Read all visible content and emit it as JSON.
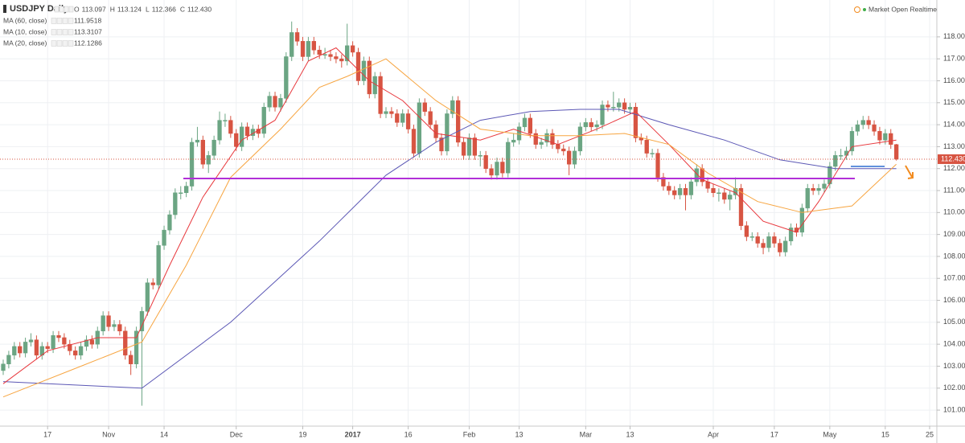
{
  "chart_data": {
    "type": "candlestick",
    "title": "USDJPY Daily",
    "ohlc_labels": [
      {
        "key": "O",
        "value": "113.097"
      },
      {
        "key": "H",
        "value": "113.124"
      },
      {
        "key": "L",
        "value": "112.366"
      },
      {
        "key": "C",
        "value": "112.430"
      }
    ],
    "status": "Market Open Realtime",
    "last_price_label": "112.430",
    "up_color": "#6ba583",
    "down_color": "#d75442",
    "grid": true,
    "xlim": [
      -0.58,
      168.3
    ],
    "ylim": [
      100.27,
      119.68
    ],
    "xticks": [
      {
        "value": 8,
        "label": "17"
      },
      {
        "value": 19,
        "label": "Nov"
      },
      {
        "value": 29,
        "label": "14"
      },
      {
        "value": 42,
        "label": "Dec"
      },
      {
        "value": 54,
        "label": "19"
      },
      {
        "value": 63,
        "label": "2017"
      },
      {
        "value": 73,
        "label": "16"
      },
      {
        "value": 84,
        "label": "Feb"
      },
      {
        "value": 93,
        "label": "13"
      },
      {
        "value": 105,
        "label": "Mar"
      },
      {
        "value": 113,
        "label": "13"
      },
      {
        "value": 128,
        "label": "Apr"
      },
      {
        "value": 139,
        "label": "17"
      },
      {
        "value": 149,
        "label": "May"
      },
      {
        "value": 159,
        "label": "15"
      },
      {
        "value": 167,
        "label": "25"
      }
    ],
    "yticks": [
      {
        "value": 101,
        "label": "101.000"
      },
      {
        "value": 102,
        "label": "102.000"
      },
      {
        "value": 103,
        "label": "103.000"
      },
      {
        "value": 104,
        "label": "104.000"
      },
      {
        "value": 105,
        "label": "105.000"
      },
      {
        "value": 106,
        "label": "106.000"
      },
      {
        "value": 107,
        "label": "107.000"
      },
      {
        "value": 108,
        "label": "108.000"
      },
      {
        "value": 109,
        "label": "109.000"
      },
      {
        "value": 110,
        "label": "110.000"
      },
      {
        "value": 111,
        "label": "111.000"
      },
      {
        "value": 112,
        "label": "112.000"
      },
      {
        "value": 113,
        "label": "113.000"
      },
      {
        "value": 114,
        "label": "114.000"
      },
      {
        "value": 115,
        "label": "115.000"
      },
      {
        "value": 116,
        "label": "116.000"
      },
      {
        "value": 117,
        "label": "117.000"
      },
      {
        "value": 118,
        "label": "118.000"
      }
    ],
    "candles": [
      [
        102.8,
        103.3,
        102.6,
        103.1
      ],
      [
        103.1,
        103.7,
        102.9,
        103.5
      ],
      [
        103.5,
        104.1,
        103.3,
        103.9
      ],
      [
        103.9,
        104.1,
        103.4,
        103.6
      ],
      [
        103.6,
        104.3,
        103.4,
        104.1
      ],
      [
        104.1,
        104.5,
        103.9,
        104.2
      ],
      [
        104.2,
        104.4,
        103.3,
        103.5
      ],
      [
        103.5,
        104.1,
        103.3,
        103.9
      ],
      [
        103.9,
        104.1,
        103.6,
        103.8
      ],
      [
        103.8,
        104.6,
        103.6,
        104.4
      ],
      [
        104.4,
        104.6,
        104.1,
        104.3
      ],
      [
        104.3,
        104.5,
        103.8,
        104.0
      ],
      [
        104.0,
        104.2,
        103.5,
        103.7
      ],
      [
        103.7,
        103.9,
        103.3,
        103.5
      ],
      [
        103.5,
        104.1,
        103.3,
        103.9
      ],
      [
        103.9,
        104.4,
        103.7,
        104.2
      ],
      [
        104.2,
        104.4,
        103.8,
        104.0
      ],
      [
        104.0,
        104.8,
        103.8,
        104.6
      ],
      [
        104.6,
        105.5,
        104.4,
        105.3
      ],
      [
        105.3,
        105.5,
        104.6,
        104.8
      ],
      [
        104.8,
        105.1,
        104.6,
        104.9
      ],
      [
        104.9,
        105.1,
        104.4,
        104.6
      ],
      [
        104.6,
        104.8,
        103.3,
        103.5
      ],
      [
        103.5,
        103.7,
        102.6,
        103.1
      ],
      [
        103.1,
        104.8,
        102.9,
        104.6
      ],
      [
        104.6,
        105.7,
        101.2,
        105.5
      ],
      [
        105.5,
        107.0,
        105.3,
        106.8
      ],
      [
        106.8,
        107.0,
        106.5,
        106.7
      ],
      [
        106.7,
        108.7,
        106.5,
        108.5
      ],
      [
        108.5,
        109.4,
        108.3,
        109.2
      ],
      [
        109.2,
        110.1,
        109.0,
        109.9
      ],
      [
        109.9,
        111.1,
        109.7,
        110.9
      ],
      [
        110.9,
        111.2,
        110.6,
        110.9
      ],
      [
        110.9,
        111.4,
        110.7,
        111.2
      ],
      [
        111.2,
        113.4,
        111.0,
        113.2
      ],
      [
        113.2,
        113.9,
        113.0,
        113.3
      ],
      [
        113.3,
        113.5,
        112.0,
        112.2
      ],
      [
        112.2,
        112.8,
        111.8,
        112.6
      ],
      [
        112.6,
        113.5,
        112.4,
        113.3
      ],
      [
        113.3,
        114.6,
        113.1,
        114.2
      ],
      [
        114.2,
        114.5,
        113.9,
        114.2
      ],
      [
        114.2,
        114.4,
        113.4,
        113.6
      ],
      [
        113.6,
        113.8,
        112.8,
        113.0
      ],
      [
        113.0,
        114.1,
        112.8,
        113.9
      ],
      [
        113.9,
        114.1,
        113.3,
        113.5
      ],
      [
        113.5,
        114.0,
        113.3,
        113.8
      ],
      [
        113.8,
        114.0,
        113.4,
        113.6
      ],
      [
        113.6,
        115.0,
        113.4,
        114.8
      ],
      [
        114.8,
        115.5,
        114.6,
        115.3
      ],
      [
        115.3,
        115.5,
        114.6,
        114.8
      ],
      [
        114.8,
        115.4,
        114.6,
        115.2
      ],
      [
        115.2,
        117.3,
        115.0,
        117.1
      ],
      [
        117.1,
        118.7,
        116.9,
        118.2
      ],
      [
        118.2,
        118.4,
        117.6,
        117.8
      ],
      [
        117.8,
        118.0,
        116.9,
        117.1
      ],
      [
        117.1,
        118.0,
        116.9,
        117.8
      ],
      [
        117.8,
        118.0,
        117.2,
        117.4
      ],
      [
        117.4,
        117.6,
        117.0,
        117.2
      ],
      [
        117.2,
        117.5,
        117.0,
        117.2
      ],
      [
        117.2,
        117.4,
        116.9,
        117.1
      ],
      [
        117.1,
        117.3,
        116.8,
        117.0
      ],
      [
        117.0,
        117.2,
        116.6,
        116.9
      ],
      [
        116.9,
        118.6,
        116.7,
        117.6
      ],
      [
        117.6,
        117.8,
        117.1,
        117.3
      ],
      [
        117.3,
        117.5,
        115.8,
        116.0
      ],
      [
        116.0,
        117.1,
        115.8,
        116.9
      ],
      [
        116.9,
        117.1,
        115.2,
        115.4
      ],
      [
        115.4,
        116.4,
        115.2,
        116.2
      ],
      [
        116.2,
        116.4,
        114.3,
        114.5
      ],
      [
        114.5,
        114.8,
        114.3,
        114.6
      ],
      [
        114.6,
        114.8,
        114.3,
        114.5
      ],
      [
        114.5,
        114.7,
        113.9,
        114.1
      ],
      [
        114.1,
        114.7,
        113.9,
        114.5
      ],
      [
        114.5,
        114.7,
        113.6,
        113.8
      ],
      [
        113.8,
        114.0,
        112.5,
        112.7
      ],
      [
        112.7,
        115.2,
        112.5,
        115.0
      ],
      [
        115.0,
        115.2,
        114.4,
        114.6
      ],
      [
        114.6,
        114.8,
        113.8,
        114.0
      ],
      [
        114.0,
        114.2,
        113.2,
        113.4
      ],
      [
        113.4,
        113.6,
        112.6,
        112.8
      ],
      [
        112.8,
        114.7,
        112.6,
        114.5
      ],
      [
        114.5,
        115.3,
        114.3,
        115.1
      ],
      [
        115.1,
        115.3,
        113.0,
        113.2
      ],
      [
        113.2,
        113.4,
        112.4,
        112.6
      ],
      [
        112.6,
        113.6,
        112.4,
        113.4
      ],
      [
        113.4,
        113.6,
        112.4,
        112.6
      ],
      [
        112.6,
        112.8,
        112.1,
        112.6
      ],
      [
        112.6,
        112.8,
        111.8,
        112.0
      ],
      [
        112.0,
        112.2,
        111.5,
        111.7
      ],
      [
        111.7,
        112.5,
        111.5,
        112.3
      ],
      [
        112.3,
        112.5,
        111.6,
        111.8
      ],
      [
        111.8,
        113.4,
        111.6,
        113.2
      ],
      [
        113.2,
        113.6,
        113.0,
        113.3
      ],
      [
        113.3,
        114.1,
        113.1,
        113.9
      ],
      [
        113.9,
        114.5,
        113.7,
        114.3
      ],
      [
        114.3,
        114.5,
        113.4,
        113.6
      ],
      [
        113.6,
        113.8,
        112.9,
        113.1
      ],
      [
        113.1,
        113.4,
        112.9,
        113.2
      ],
      [
        113.2,
        113.8,
        113.0,
        113.6
      ],
      [
        113.6,
        113.8,
        112.9,
        113.1
      ],
      [
        113.1,
        113.3,
        112.7,
        112.9
      ],
      [
        112.9,
        113.1,
        112.6,
        112.8
      ],
      [
        112.8,
        113.0,
        111.7,
        112.2
      ],
      [
        112.2,
        113.0,
        112.0,
        112.8
      ],
      [
        112.8,
        114.1,
        112.6,
        113.9
      ],
      [
        113.9,
        114.3,
        113.7,
        114.1
      ],
      [
        114.1,
        114.3,
        113.7,
        113.9
      ],
      [
        113.9,
        114.2,
        113.7,
        114.0
      ],
      [
        114.0,
        115.1,
        113.8,
        114.9
      ],
      [
        114.9,
        115.1,
        114.6,
        114.8
      ],
      [
        114.8,
        115.5,
        114.6,
        114.8
      ],
      [
        114.8,
        115.2,
        114.6,
        115.0
      ],
      [
        115.0,
        115.2,
        114.5,
        114.7
      ],
      [
        114.7,
        115.0,
        114.5,
        114.8
      ],
      [
        114.8,
        115.0,
        113.2,
        113.4
      ],
      [
        113.4,
        113.6,
        113.1,
        113.3
      ],
      [
        113.3,
        113.5,
        112.5,
        112.7
      ],
      [
        112.7,
        112.9,
        112.5,
        112.7
      ],
      [
        112.7,
        112.9,
        111.4,
        111.6
      ],
      [
        111.6,
        111.8,
        111.0,
        111.2
      ],
      [
        111.2,
        111.4,
        110.8,
        111.0
      ],
      [
        111.0,
        111.2,
        110.6,
        110.8
      ],
      [
        110.8,
        111.3,
        110.6,
        111.1
      ],
      [
        111.1,
        111.3,
        110.1,
        110.8
      ],
      [
        110.8,
        111.6,
        110.6,
        111.4
      ],
      [
        111.4,
        112.2,
        111.2,
        112.0
      ],
      [
        112.0,
        112.2,
        111.2,
        111.4
      ],
      [
        111.4,
        111.6,
        110.9,
        111.1
      ],
      [
        111.1,
        111.3,
        110.7,
        110.9
      ],
      [
        110.9,
        111.1,
        110.5,
        110.9
      ],
      [
        110.9,
        111.1,
        110.4,
        110.6
      ],
      [
        110.6,
        111.0,
        110.1,
        110.8
      ],
      [
        110.8,
        111.6,
        110.6,
        111.1
      ],
      [
        111.1,
        111.3,
        109.2,
        109.4
      ],
      [
        109.4,
        109.6,
        108.7,
        108.9
      ],
      [
        108.9,
        109.1,
        108.7,
        108.9
      ],
      [
        108.9,
        109.1,
        108.4,
        108.6
      ],
      [
        108.6,
        108.8,
        108.1,
        108.4
      ],
      [
        108.4,
        109.1,
        108.2,
        108.9
      ],
      [
        108.9,
        109.1,
        108.4,
        108.6
      ],
      [
        108.6,
        108.8,
        108.0,
        108.2
      ],
      [
        108.2,
        108.9,
        108.0,
        108.7
      ],
      [
        108.7,
        109.5,
        108.5,
        109.3
      ],
      [
        109.3,
        109.5,
        108.9,
        109.1
      ],
      [
        109.1,
        110.4,
        108.9,
        110.2
      ],
      [
        110.2,
        111.3,
        110.0,
        111.1
      ],
      [
        111.1,
        111.3,
        110.8,
        111.0
      ],
      [
        111.0,
        111.3,
        110.8,
        111.1
      ],
      [
        111.1,
        111.5,
        110.9,
        111.3
      ],
      [
        111.3,
        112.3,
        111.1,
        112.1
      ],
      [
        112.1,
        112.8,
        111.9,
        112.6
      ],
      [
        112.6,
        112.9,
        112.4,
        112.6
      ],
      [
        112.6,
        113.0,
        112.4,
        112.8
      ],
      [
        112.8,
        113.9,
        112.6,
        113.7
      ],
      [
        113.7,
        114.2,
        113.5,
        114.0
      ],
      [
        114.0,
        114.4,
        113.8,
        114.2
      ],
      [
        114.2,
        114.4,
        113.8,
        114.0
      ],
      [
        114.0,
        114.2,
        113.5,
        113.7
      ],
      [
        113.7,
        113.9,
        113.1,
        113.3
      ],
      [
        113.3,
        113.8,
        113.1,
        113.6
      ],
      [
        113.6,
        113.8,
        112.9,
        113.1
      ],
      [
        113.097,
        113.124,
        112.366,
        112.43
      ]
    ],
    "series": [
      {
        "name": "MA (60, close)",
        "value_label": "111.9518",
        "color": "#5b57b5",
        "x": [
          0,
          25,
          41,
          57,
          69,
          78,
          86,
          95,
          104,
          111,
          120,
          130,
          140,
          150,
          161
        ],
        "values": [
          102.3,
          102.0,
          105.0,
          108.7,
          111.7,
          113.2,
          114.2,
          114.6,
          114.7,
          114.7,
          114.0,
          113.3,
          112.4,
          112.0,
          112.0
        ]
      },
      {
        "name": "MA (10, close)",
        "value_label": "113.3107",
        "color": "#e8383d",
        "x": [
          0,
          8,
          17,
          24,
          30,
          36,
          43,
          49,
          55,
          60,
          66,
          72,
          78,
          86,
          92,
          100,
          107,
          114,
          120,
          126,
          132,
          137,
          143,
          147,
          153,
          161
        ],
        "values": [
          102.2,
          103.7,
          104.3,
          104.3,
          107.6,
          110.7,
          113.3,
          114.2,
          116.9,
          117.5,
          116.0,
          115.1,
          113.6,
          113.3,
          113.8,
          113.1,
          113.8,
          114.6,
          113.1,
          111.5,
          110.9,
          109.6,
          109.1,
          110.5,
          113.0,
          113.3
        ]
      },
      {
        "name": "MA (20, close)",
        "value_label": "112.1286",
        "color": "#f7a541",
        "x": [
          0,
          14,
          25,
          33,
          41,
          50,
          57,
          62,
          69,
          78,
          86,
          95,
          104,
          112,
          120,
          127,
          136,
          144,
          153,
          161
        ],
        "values": [
          101.6,
          103.0,
          104.1,
          107.6,
          111.6,
          113.8,
          115.7,
          116.2,
          117.0,
          115.1,
          113.8,
          113.5,
          113.5,
          113.6,
          113.1,
          111.8,
          110.5,
          110.0,
          110.3,
          112.2
        ]
      }
    ]
  }
}
